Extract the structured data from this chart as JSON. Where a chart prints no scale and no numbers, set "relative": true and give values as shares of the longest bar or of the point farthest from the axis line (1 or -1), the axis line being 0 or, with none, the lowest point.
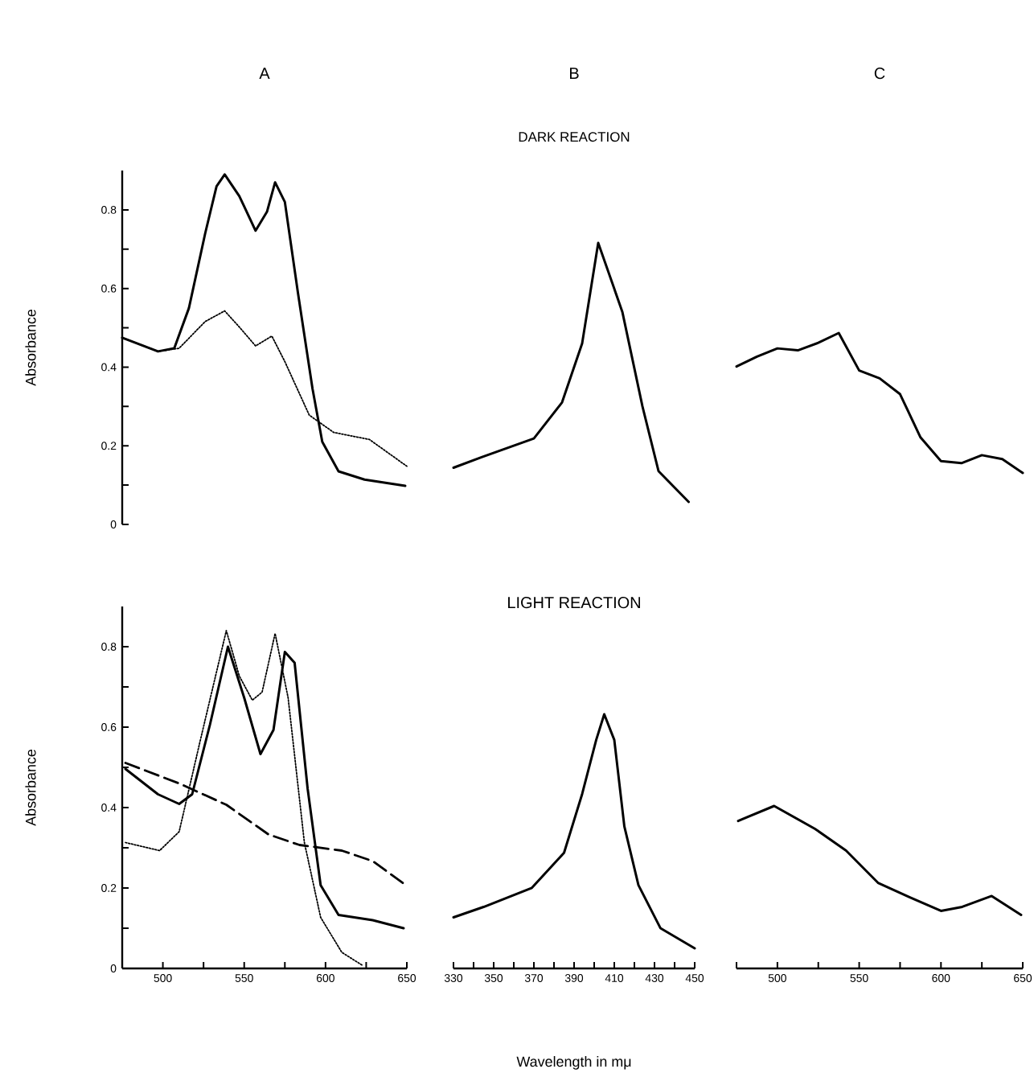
{
  "chart_data": [
    {
      "type": "line",
      "title": "A",
      "ylabel": "Absorbance",
      "xlim": [
        475,
        650
      ],
      "ylim": [
        0,
        0.9
      ],
      "yticks": [
        0,
        {
          "value": 0.1,
          "label": null
        },
        0.2,
        {
          "value": 0.3,
          "label": null
        },
        0.4,
        {
          "value": 0.5,
          "label": null
        },
        0.6,
        {
          "value": 0.7,
          "label": null
        },
        0.8
      ],
      "tick_labels": "y",
      "series": [
        {
          "color": "#000000",
          "line_style": "solid",
          "x": [
            475,
            497,
            507,
            516,
            526,
            533,
            538,
            547,
            557,
            564,
            569,
            575,
            583,
            592,
            598,
            608,
            624,
            649
          ],
          "values": [
            0.475,
            0.44,
            0.448,
            0.55,
            0.74,
            0.86,
            0.89,
            0.835,
            0.747,
            0.795,
            0.87,
            0.82,
            0.59,
            0.345,
            0.21,
            0.135,
            0.114,
            0.098
          ]
        },
        {
          "color": "#000000",
          "line_style": "dotted",
          "x": [
            475,
            497,
            510,
            526,
            538,
            547,
            557,
            567,
            575,
            590,
            605,
            627,
            650
          ],
          "values": [
            0.475,
            0.44,
            0.448,
            0.516,
            0.543,
            0.502,
            0.454,
            0.479,
            0.414,
            0.278,
            0.234,
            0.216,
            0.148
          ]
        }
      ]
    },
    {
      "type": "line",
      "title": "B",
      "subtitle": "DARK REACTION",
      "relative": true,
      "xlim": [
        330,
        450
      ],
      "tick_labels": false,
      "series": [
        {
          "color": "#000000",
          "line_style": "solid",
          "x": [
            330,
            344,
            370,
            384,
            394,
            402,
            414,
            424,
            432,
            447
          ],
          "values": [
            0.132,
            0.173,
            0.245,
            0.384,
            0.612,
            1,
            0.734,
            0.369,
            0.119,
            0
          ]
        }
      ]
    },
    {
      "type": "line",
      "title": "C",
      "relative": true,
      "tick_labels": false,
      "categories": [
        null,
        null,
        null,
        null,
        null,
        null,
        null,
        null,
        null,
        null,
        null,
        null,
        null,
        null,
        null
      ],
      "series": [
        {
          "color": "#000000",
          "line_style": "solid",
          "values": [
            0.761,
            0.831,
            0.89,
            0.876,
            0.93,
            1,
            0.732,
            0.676,
            0.563,
            0.254,
            0.085,
            0.07,
            0.127,
            0.099,
            0
          ]
        }
      ]
    },
    {
      "type": "line",
      "ylabel": "Absorbance",
      "xlim": [
        475,
        650
      ],
      "ylim": [
        0,
        0.9
      ],
      "xticks": [
        500,
        {
          "value": 525,
          "label": null
        },
        550,
        {
          "value": 575,
          "label": null
        },
        600,
        {
          "value": 625,
          "label": null
        },
        650
      ],
      "yticks": [
        0,
        {
          "value": 0.1,
          "label": null
        },
        0.2,
        {
          "value": 0.3,
          "label": null
        },
        0.4,
        {
          "value": 0.5,
          "label": null
        },
        0.6,
        {
          "value": 0.7,
          "label": null
        },
        0.8
      ],
      "series": [
        {
          "color": "#000000",
          "line_style": "solid",
          "x": [
            477,
            497,
            510,
            518,
            529,
            540,
            550,
            560,
            568,
            575,
            581,
            589,
            597,
            608,
            629,
            648
          ],
          "values": [
            0.496,
            0.433,
            0.409,
            0.433,
            0.607,
            0.8,
            0.673,
            0.533,
            0.593,
            0.787,
            0.76,
            0.447,
            0.207,
            0.133,
            0.12,
            0.1
          ]
        },
        {
          "color": "#000000",
          "line_style": "dotted",
          "x": [
            477,
            498,
            510,
            523,
            539,
            547,
            555,
            561,
            569,
            577,
            587,
            597,
            610,
            623
          ],
          "values": [
            0.313,
            0.293,
            0.34,
            0.567,
            0.84,
            0.727,
            0.667,
            0.687,
            0.833,
            0.673,
            0.313,
            0.127,
            0.04,
            0.007
          ]
        },
        {
          "color": "#000000",
          "line_style": "dashed",
          "x": [
            477,
            510,
            539,
            565,
            584,
            610,
            629,
            648
          ],
          "values": [
            0.511,
            0.46,
            0.407,
            0.333,
            0.307,
            0.293,
            0.267,
            0.211
          ]
        }
      ]
    },
    {
      "type": "line",
      "title": "LIGHT REACTION",
      "xlabel": "Wavelength in mμ",
      "relative": true,
      "xlim": [
        330,
        450
      ],
      "xticks": [
        330,
        {
          "value": 340,
          "label": null
        },
        350,
        {
          "value": 360,
          "label": null
        },
        370,
        {
          "value": 380,
          "label": null
        },
        390,
        {
          "value": 400,
          "label": null
        },
        410,
        {
          "value": 420,
          "label": null
        },
        430,
        {
          "value": 440,
          "label": null
        },
        450
      ],
      "tick_labels": "x",
      "series": [
        {
          "color": "#000000",
          "line_style": "solid",
          "x": [
            330,
            345,
            369,
            385,
            394,
            401,
            405,
            410,
            415,
            422,
            433,
            450
          ],
          "values": [
            0.201,
            0.242,
            0.317,
            0.455,
            0.686,
            0.899,
            1,
            0.899,
            0.559,
            0.328,
            0.158,
            0.079
          ]
        }
      ]
    },
    {
      "type": "line",
      "relative": true,
      "xlim": [
        475,
        650
      ],
      "xticks": [
        {
          "value": 475,
          "label": null
        },
        500,
        {
          "value": 525,
          "label": null
        },
        550,
        {
          "value": 575,
          "label": null
        },
        600,
        {
          "value": 625,
          "label": null
        },
        650
      ],
      "tick_labels": "x",
      "series": [
        {
          "color": "#000000",
          "line_style": "solid",
          "x": [
            476,
            498,
            523,
            542,
            561.5,
            581,
            600,
            613,
            631,
            649
          ],
          "values": [
            0.908,
            1,
            0.859,
            0.725,
            0.527,
            0.438,
            0.354,
            0.379,
            0.446,
            0.329
          ]
        }
      ]
    }
  ]
}
